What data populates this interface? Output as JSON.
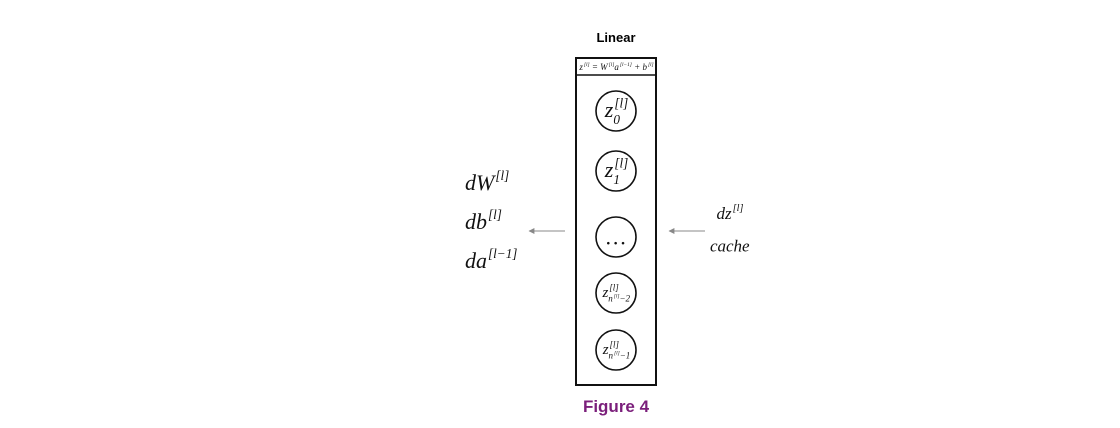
{
  "title": "Linear",
  "equation": [
    {
      "base": "z",
      "sup": "[l]"
    },
    {
      "base": " = W",
      "sup": "[l]"
    },
    {
      "base": "a",
      "sup": "[l−1]"
    },
    {
      "base": " + b",
      "sup": "[l]"
    }
  ],
  "nodes": [
    {
      "base": "z",
      "sup": "[l]",
      "sub": "0"
    },
    {
      "base": "z",
      "sup": "[l]",
      "sub": "1"
    },
    {
      "base": "…"
    },
    {
      "base": "z",
      "sup": "[l]",
      "sub": {
        "base": "n",
        "sup": "[l]",
        "tail": "−2"
      }
    },
    {
      "base": "z",
      "sup": "[l]",
      "sub": {
        "base": "n",
        "sup": "[l]",
        "tail": "−1"
      }
    }
  ],
  "outputs": [
    {
      "base": "dW",
      "sup": "[l]"
    },
    {
      "base": "db",
      "sup": "[l]"
    },
    {
      "base": "da",
      "sup": "[l−1]"
    }
  ],
  "inputs": [
    {
      "base": "dz",
      "sup": "[l]"
    },
    {
      "base": "cache"
    }
  ],
  "caption": "Figure 4"
}
